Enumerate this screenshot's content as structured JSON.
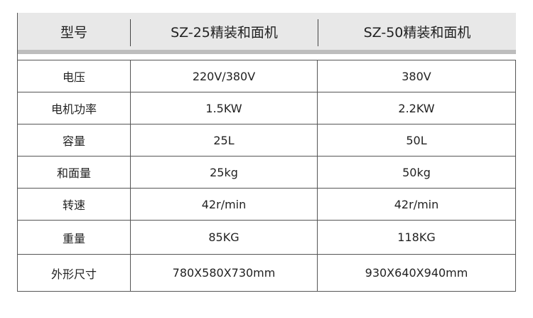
{
  "header": {
    "col0": "型号",
    "col1": "SZ-25精装和面机",
    "col2": "SZ-50精装和面机"
  },
  "rows": [
    {
      "label": "电压",
      "a": "220V/380V",
      "b": "380V"
    },
    {
      "label": "电机功率",
      "a": "1.5KW",
      "b": "2.2KW"
    },
    {
      "label": "容量",
      "a": "25L",
      "b": "50L"
    },
    {
      "label": "和面量",
      "a": "25kg",
      "b": "50kg"
    },
    {
      "label": "转速",
      "a": "42r/min",
      "b": "42r/min"
    },
    {
      "label": "重量",
      "a": "85KG",
      "b": "118KG"
    },
    {
      "label": "外形尺寸",
      "a": "780X580X730mm",
      "b": "930X640X940mm"
    }
  ]
}
